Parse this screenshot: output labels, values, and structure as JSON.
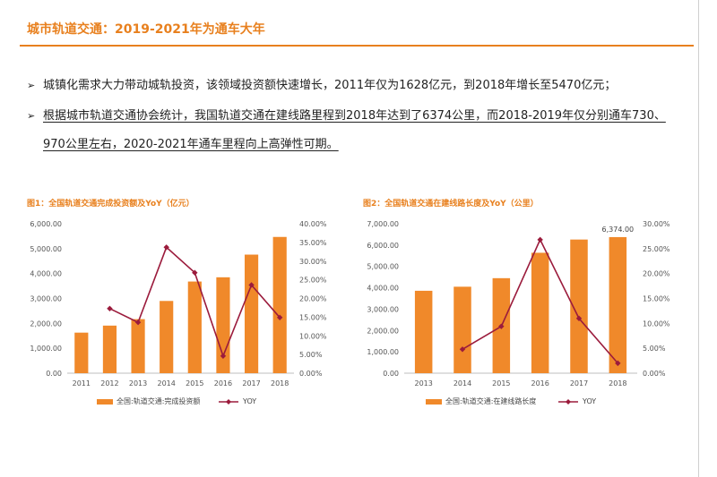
{
  "header": {
    "title": "城市轨道交通：2019-2021年为通车大年"
  },
  "bullets": [
    {
      "arrow": "➢",
      "lines": [
        "城镇化需求大力带动城轨投资，该领域投资额快速增长，2011年仅为1628亿元，到2018年增长至5470亿元；"
      ]
    },
    {
      "arrow": "➢",
      "lines": [
        "根据城市轨道交通协会统计，我国轨道交通在建线路里程到2018年达到了6374公里，而2018-2019年仅分别通车730、",
        "970公里左右，2020-2021年通车里程向上高弹性可期。"
      ]
    }
  ],
  "chart_data": [
    {
      "type": "bar",
      "title": "图1：全国轨道交通完成投资额及YoY（亿元）",
      "categories": [
        "2011",
        "2012",
        "2013",
        "2014",
        "2015",
        "2016",
        "2017",
        "2018"
      ],
      "series": [
        {
          "name": "全国:轨道交通:完成投资额",
          "type": "bar",
          "axis": "left",
          "color": "#f0892a",
          "values": [
            1628,
            1910,
            2170,
            2900,
            3680,
            3850,
            4760,
            5470
          ]
        },
        {
          "name": "YOY",
          "type": "line",
          "axis": "right",
          "color": "#9b1b3c",
          "values": [
            null,
            0.173,
            0.136,
            0.337,
            0.269,
            0.046,
            0.236,
            0.149
          ]
        }
      ],
      "y_left": {
        "min": 0,
        "max": 6000,
        "ticks": [
          0,
          1000,
          2000,
          3000,
          4000,
          5000,
          6000
        ],
        "tick_labels": [
          "0.00",
          "1,000.00",
          "2,000.00",
          "3,000.00",
          "4,000.00",
          "5,000.00",
          "6,000.00"
        ]
      },
      "y_right": {
        "min": 0,
        "max": 0.4,
        "ticks": [
          0,
          0.05,
          0.1,
          0.15,
          0.2,
          0.25,
          0.3,
          0.35,
          0.4
        ],
        "tick_labels": [
          "0.00%",
          "5.00%",
          "10.00%",
          "15.00%",
          "20.00%",
          "25.00%",
          "30.00%",
          "35.00%",
          "40.00%"
        ]
      },
      "data_labels": [],
      "legend": "bottom"
    },
    {
      "type": "bar",
      "title": "图2：全国轨道交通在建线路长度及YoY（公里）",
      "categories": [
        "2013",
        "2014",
        "2015",
        "2016",
        "2017",
        "2018"
      ],
      "series": [
        {
          "name": "全国:轨道交通:在建线路长度",
          "type": "bar",
          "axis": "left",
          "color": "#f0892a",
          "values": [
            3860,
            4050,
            4450,
            5640,
            6260,
            6374
          ]
        },
        {
          "name": "YOY",
          "type": "line",
          "axis": "right",
          "color": "#9b1b3c",
          "values": [
            null,
            0.048,
            0.094,
            0.268,
            0.11,
            0.02
          ]
        }
      ],
      "y_left": {
        "min": 0,
        "max": 7000,
        "ticks": [
          0,
          1000,
          2000,
          3000,
          4000,
          5000,
          6000,
          7000
        ],
        "tick_labels": [
          "0.00",
          "1,000.00",
          "2,000.00",
          "3,000.00",
          "4,000.00",
          "5,000.00",
          "6,000.00",
          "7,000.00"
        ]
      },
      "y_right": {
        "min": 0,
        "max": 0.3,
        "ticks": [
          0,
          0.05,
          0.1,
          0.15,
          0.2,
          0.25,
          0.3
        ],
        "tick_labels": [
          "0.00%",
          "5.00%",
          "10.00%",
          "15.00%",
          "20.00%",
          "25.00%",
          "30.00%"
        ]
      },
      "data_labels": [
        {
          "index": 5,
          "text": "6,374.00"
        }
      ],
      "legend": "bottom"
    }
  ]
}
